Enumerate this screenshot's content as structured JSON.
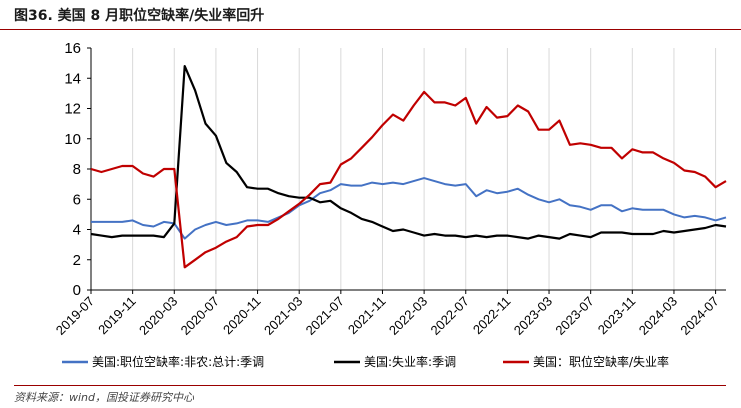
{
  "header": {
    "title": "图36. 美国 8 月职位空缺率/失业率回升"
  },
  "source": "资料来源：wind，国投证券研究中心",
  "chart_data": {
    "type": "line",
    "ylim": [
      0,
      16
    ],
    "yticks": [
      0,
      2,
      4,
      6,
      8,
      10,
      12,
      14,
      16
    ],
    "x_start": "2019-07",
    "x_end": "2024-08",
    "xticks": [
      "2019-07",
      "2019-11",
      "2020-03",
      "2020-07",
      "2020-11",
      "2021-03",
      "2021-07",
      "2021-11",
      "2022-03",
      "2022-07",
      "2022-11",
      "2023-03",
      "2023-07",
      "2023-11",
      "2024-03",
      "2024-07"
    ],
    "grid": "vertical",
    "legend_position": "bottom",
    "x": [
      "2019-07",
      "2019-08",
      "2019-09",
      "2019-10",
      "2019-11",
      "2019-12",
      "2020-01",
      "2020-02",
      "2020-03",
      "2020-04",
      "2020-05",
      "2020-06",
      "2020-07",
      "2020-08",
      "2020-09",
      "2020-10",
      "2020-11",
      "2020-12",
      "2021-01",
      "2021-02",
      "2021-03",
      "2021-04",
      "2021-05",
      "2021-06",
      "2021-07",
      "2021-08",
      "2021-09",
      "2021-10",
      "2021-11",
      "2021-12",
      "2022-01",
      "2022-02",
      "2022-03",
      "2022-04",
      "2022-05",
      "2022-06",
      "2022-07",
      "2022-08",
      "2022-09",
      "2022-10",
      "2022-11",
      "2022-12",
      "2023-01",
      "2023-02",
      "2023-03",
      "2023-04",
      "2023-05",
      "2023-06",
      "2023-07",
      "2023-08",
      "2023-09",
      "2023-10",
      "2023-11",
      "2023-12",
      "2024-01",
      "2024-02",
      "2024-03",
      "2024-04",
      "2024-05",
      "2024-06",
      "2024-07",
      "2024-08"
    ],
    "series": [
      {
        "name": "美国:职位空缺率:非农:总计:季调",
        "color": "#4472c4",
        "values": [
          4.5,
          4.5,
          4.5,
          4.5,
          4.6,
          4.3,
          4.2,
          4.5,
          4.4,
          3.4,
          4.0,
          4.3,
          4.5,
          4.3,
          4.4,
          4.6,
          4.6,
          4.5,
          4.8,
          5.1,
          5.6,
          5.9,
          6.4,
          6.6,
          7.0,
          6.9,
          6.9,
          7.1,
          7.0,
          7.1,
          7.0,
          7.2,
          7.4,
          7.2,
          7.0,
          6.9,
          7.0,
          6.2,
          6.6,
          6.4,
          6.5,
          6.7,
          6.3,
          6.0,
          5.8,
          6.0,
          5.6,
          5.5,
          5.3,
          5.6,
          5.6,
          5.2,
          5.4,
          5.3,
          5.3,
          5.3,
          5.0,
          4.8,
          4.9,
          4.8,
          4.6,
          4.8
        ]
      },
      {
        "name": "美国:失业率:季调",
        "color": "#000000",
        "values": [
          3.7,
          3.6,
          3.5,
          3.6,
          3.6,
          3.6,
          3.6,
          3.5,
          4.4,
          14.8,
          13.2,
          11.0,
          10.2,
          8.4,
          7.8,
          6.8,
          6.7,
          6.7,
          6.4,
          6.2,
          6.1,
          6.1,
          5.8,
          5.9,
          5.4,
          5.1,
          4.7,
          4.5,
          4.2,
          3.9,
          4.0,
          3.8,
          3.6,
          3.7,
          3.6,
          3.6,
          3.5,
          3.6,
          3.5,
          3.6,
          3.6,
          3.5,
          3.4,
          3.6,
          3.5,
          3.4,
          3.7,
          3.6,
          3.5,
          3.8,
          3.8,
          3.8,
          3.7,
          3.7,
          3.7,
          3.9,
          3.8,
          3.9,
          4.0,
          4.1,
          4.3,
          4.2
        ]
      },
      {
        "name": "美国：职位空缺率/失业率",
        "color": "#c00000",
        "values": [
          8.0,
          7.8,
          8.0,
          8.2,
          8.2,
          7.7,
          7.5,
          8.0,
          8.0,
          1.5,
          2.0,
          2.5,
          2.8,
          3.2,
          3.5,
          4.2,
          4.3,
          4.3,
          4.7,
          5.2,
          5.7,
          6.3,
          7.0,
          7.1,
          8.3,
          8.7,
          9.4,
          10.1,
          10.9,
          11.6,
          11.2,
          12.2,
          13.1,
          12.4,
          12.4,
          12.2,
          12.7,
          11.0,
          12.1,
          11.4,
          11.5,
          12.2,
          11.8,
          10.6,
          10.6,
          11.2,
          9.6,
          9.7,
          9.6,
          9.4,
          9.4,
          8.7,
          9.3,
          9.1,
          9.1,
          8.7,
          8.4,
          7.9,
          7.8,
          7.5,
          6.8,
          7.2
        ]
      }
    ]
  }
}
